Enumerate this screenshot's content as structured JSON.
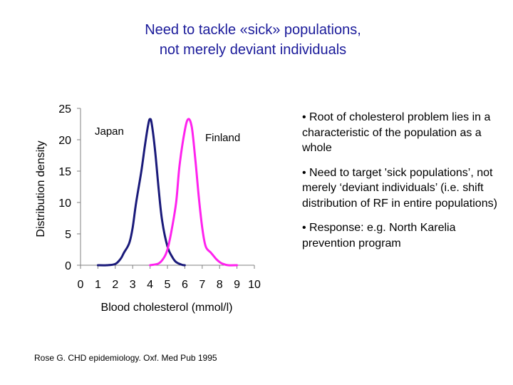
{
  "slide": {
    "title_line1": "Need to tackle «sick» populations,",
    "title_line2": "not merely deviant individuals",
    "bullets": [
      "• Root of cholesterol problem lies in a characteristic of the population as a whole",
      "• Need to target 'sick populations’, not merely ‘deviant individuals’ (i.e. shift distribution of RF in entire populations)",
      "• Response: e.g. North Karelia prevention program"
    ],
    "citation": "Rose G. CHD epidemiology. Oxf. Med Pub 1995"
  },
  "colors": {
    "title": "#1a1a9a",
    "japan": "#1a1a7a",
    "finland": "#ff22ee"
  },
  "chart_data": {
    "type": "line",
    "xlabel": "Blood cholesterol (mmol/l)",
    "ylabel": "Distribution density",
    "xlim": [
      0,
      10
    ],
    "ylim": [
      0,
      25
    ],
    "xticks": [
      0,
      1,
      2,
      3,
      4,
      5,
      6,
      7,
      8,
      9,
      10
    ],
    "yticks": [
      0,
      5,
      10,
      15,
      20,
      25
    ],
    "grid": false,
    "series": [
      {
        "name": "Japan",
        "color": "#1a1a7a",
        "x": [
          1.0,
          1.5,
          2.0,
          2.3,
          2.5,
          2.8,
          3.0,
          3.2,
          3.5,
          3.7,
          3.9,
          4.0,
          4.1,
          4.3,
          4.5,
          4.7,
          5.0,
          5.3,
          5.5,
          5.8,
          6.0
        ],
        "y": [
          0,
          0,
          0.2,
          1.0,
          2.0,
          3.5,
          6,
          10,
          15,
          19,
          22.5,
          23.3,
          22.5,
          18,
          12,
          7,
          3,
          1.2,
          0.5,
          0.1,
          0
        ]
      },
      {
        "name": "Finland",
        "color": "#ff22ee",
        "x": [
          4.0,
          4.5,
          4.8,
          5.0,
          5.2,
          5.5,
          5.7,
          6.0,
          6.2,
          6.4,
          6.6,
          6.8,
          7.0,
          7.2,
          7.5,
          7.8,
          8.0,
          8.2,
          8.5,
          9.0
        ],
        "y": [
          0,
          0.3,
          1.2,
          2.5,
          5,
          10,
          16,
          21.5,
          23.3,
          22,
          17,
          11,
          6,
          3,
          2,
          1,
          0.5,
          0.2,
          0,
          0
        ]
      }
    ]
  }
}
